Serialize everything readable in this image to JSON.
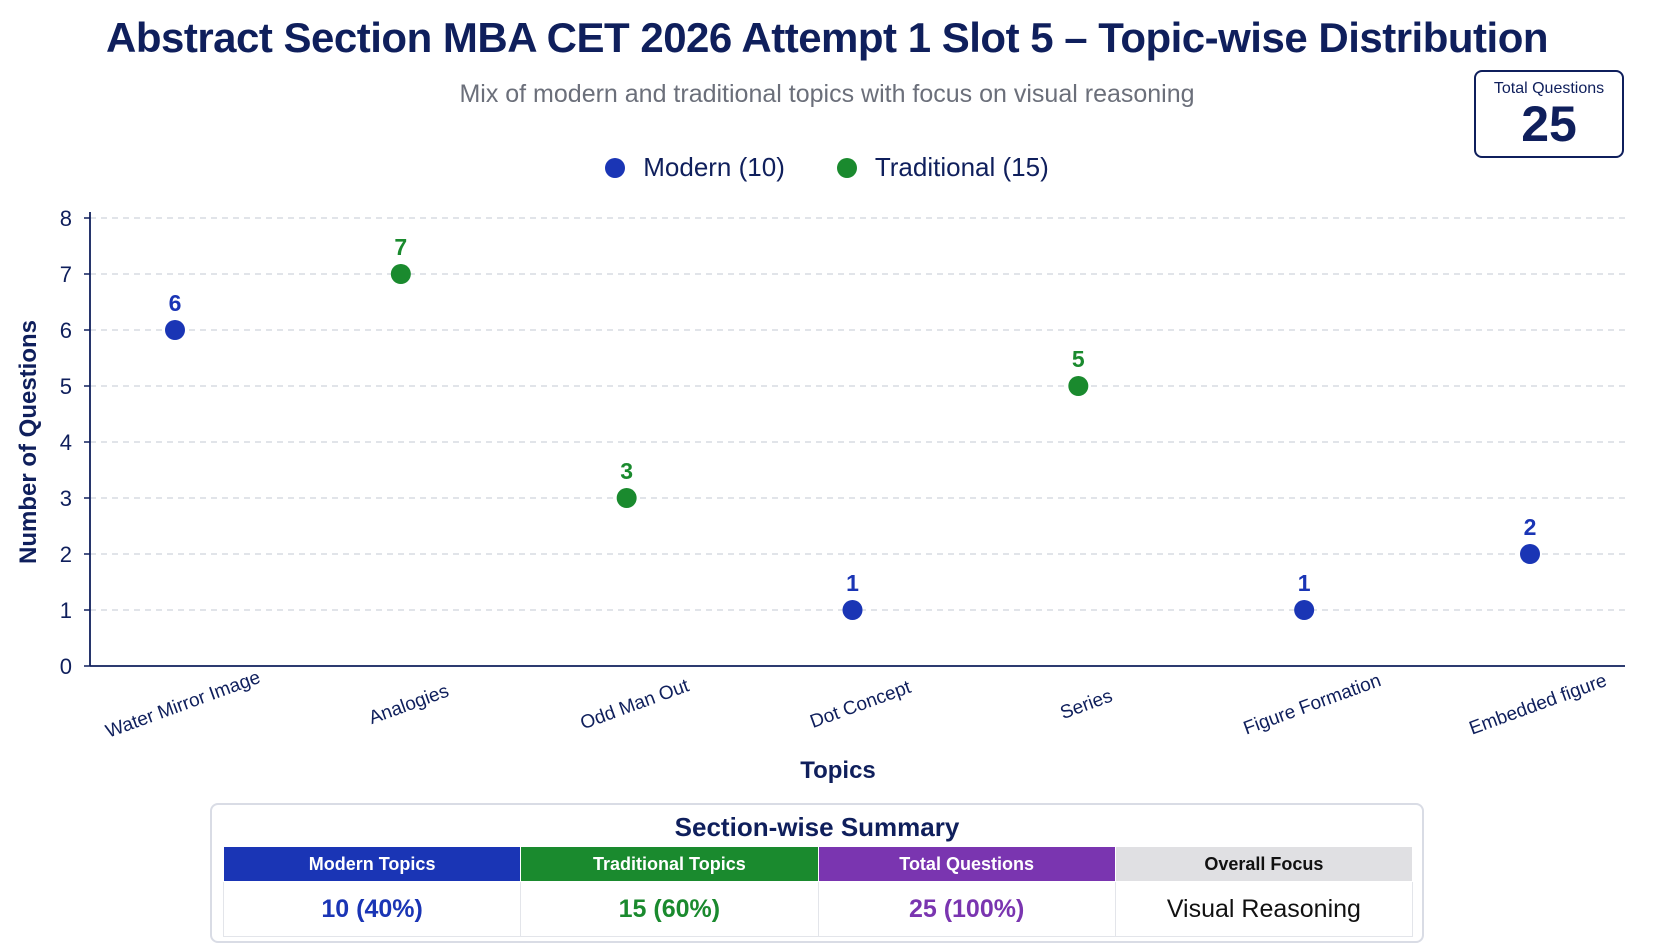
{
  "title": "Abstract Section MBA CET 2026 Attempt 1 Slot 5 – Topic-wise Distribution",
  "subtitle": "Mix of modern and traditional topics with focus on visual reasoning",
  "total_box": {
    "label": "Total Questions",
    "value": "25"
  },
  "colors": {
    "modern": "#1a35b5",
    "traditional": "#1a8a2e",
    "total": "#7a35b0",
    "focus": "#e0e0e3",
    "axis": "#0f1f5c",
    "grid": "#cfd3dc"
  },
  "chart_data": {
    "type": "scatter",
    "xlabel": "Topics",
    "ylabel": "Number of Questions",
    "ylim": [
      0,
      8
    ],
    "yticks": [
      "0",
      "1",
      "2",
      "3",
      "4",
      "5",
      "6",
      "7",
      "8"
    ],
    "grid": true,
    "legend_position": "top-center",
    "categories": [
      "Water Mirror Image",
      "Analogies",
      "Odd Man Out",
      "Dot Concept",
      "Series",
      "Figure Formation",
      "Embedded figure"
    ],
    "series": [
      {
        "name": "Modern (10)",
        "color_key": "modern",
        "points": [
          {
            "category": "Water Mirror Image",
            "value": 6
          },
          {
            "category": "Dot Concept",
            "value": 1
          },
          {
            "category": "Figure Formation",
            "value": 1
          },
          {
            "category": "Embedded figure",
            "value": 2
          }
        ]
      },
      {
        "name": "Traditional (15)",
        "color_key": "traditional",
        "points": [
          {
            "category": "Analogies",
            "value": 7
          },
          {
            "category": "Odd Man Out",
            "value": 3
          },
          {
            "category": "Series",
            "value": 5
          }
        ]
      }
    ]
  },
  "summary": {
    "title": "Section-wise Summary",
    "columns": [
      {
        "header": "Modern Topics",
        "value": "10 (40%)",
        "color_key": "modern"
      },
      {
        "header": "Traditional Topics",
        "value": "15 (60%)",
        "color_key": "traditional"
      },
      {
        "header": "Total Questions",
        "value": "25 (100%)",
        "color_key": "total"
      },
      {
        "header": "Overall Focus",
        "value": "Visual Reasoning",
        "color_key": "focus"
      }
    ]
  }
}
